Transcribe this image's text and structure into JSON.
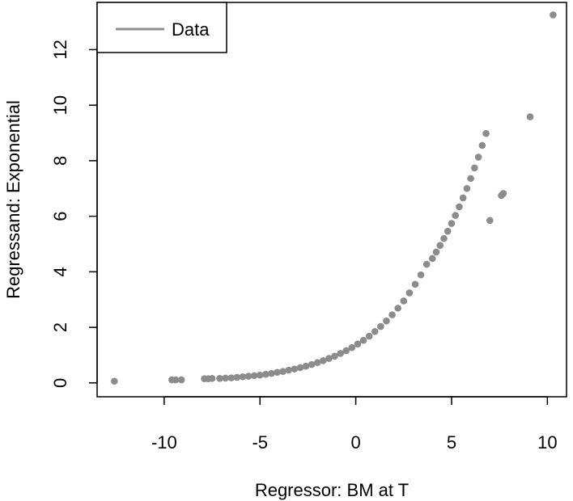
{
  "chart_data": {
    "type": "scatter",
    "xlabel": "Regressor: BM at T",
    "ylabel": "Regressand: Exponential",
    "xlim": [
      -13.5,
      11
    ],
    "ylim": [
      -0.5,
      13.7
    ],
    "x_ticks": [
      -10,
      -5,
      0,
      5,
      10
    ],
    "y_ticks": [
      0,
      2,
      4,
      6,
      8,
      10,
      12
    ],
    "legend": {
      "position": "top-left",
      "entries": [
        {
          "label": "Data",
          "color": "#8c8c8c"
        }
      ]
    },
    "point_color": "#8c8c8c",
    "series": [
      {
        "x": [
          -12.6,
          -9.6,
          -9.4,
          -9.1,
          -7.9,
          -7.7,
          -7.5,
          -7.1,
          -6.8,
          -6.5,
          -6.2,
          -5.9,
          -5.6,
          -5.3,
          -5.0,
          -4.7,
          -4.4,
          -4.1,
          -3.8,
          -3.5,
          -3.2,
          -2.9,
          -2.6,
          -2.3,
          -2.0,
          -1.7,
          -1.4,
          -1.1,
          -0.8,
          -0.5,
          -0.2,
          0.1,
          0.4,
          0.7,
          1.0,
          1.3,
          1.6,
          1.9,
          2.2,
          2.5,
          2.8,
          3.1,
          3.4,
          3.7,
          4.0,
          4.2,
          4.4,
          4.6,
          4.8,
          5.0,
          5.2,
          5.4,
          5.6,
          5.8,
          6.0,
          6.2,
          6.4,
          6.6,
          6.8,
          7.0,
          7.6,
          7.7,
          9.1,
          10.3
        ],
        "y": [
          0.06,
          0.11,
          0.11,
          0.11,
          0.15,
          0.15,
          0.16,
          0.16,
          0.17,
          0.18,
          0.2,
          0.22,
          0.24,
          0.26,
          0.28,
          0.31,
          0.34,
          0.38,
          0.41,
          0.46,
          0.5,
          0.55,
          0.6,
          0.66,
          0.73,
          0.8,
          0.88,
          0.96,
          1.06,
          1.16,
          1.27,
          1.4,
          1.53,
          1.68,
          1.85,
          2.03,
          2.23,
          2.45,
          2.69,
          2.95,
          3.24,
          3.55,
          3.89,
          4.27,
          4.48,
          4.71,
          4.95,
          5.2,
          5.46,
          5.74,
          6.03,
          6.34,
          6.66,
          7.0,
          7.36,
          7.74,
          8.13,
          8.55,
          8.98,
          5.85,
          6.75,
          6.82,
          9.58,
          13.25
        ]
      }
    ]
  }
}
